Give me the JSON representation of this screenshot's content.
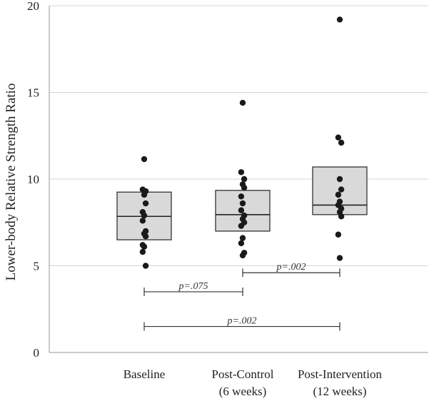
{
  "chart_data": {
    "type": "box",
    "title": "",
    "ylabel": "Lower-body Relative Strength Ratio",
    "xlabel": "",
    "ylim": [
      0,
      20
    ],
    "yticks": [
      0,
      5,
      10,
      15,
      20
    ],
    "grid": true,
    "categories": [
      {
        "label_line1": "Baseline",
        "label_line2": ""
      },
      {
        "label_line1": "Post-Control",
        "label_line2": "(6 weeks)"
      },
      {
        "label_line1": "Post-Intervention",
        "label_line2": "(12 weeks)"
      }
    ],
    "boxes": [
      {
        "q1": 6.5,
        "median": 7.85,
        "q3": 9.25
      },
      {
        "q1": 7.0,
        "median": 7.95,
        "q3": 9.35
      },
      {
        "q1": 7.95,
        "median": 8.5,
        "q3": 10.7
      }
    ],
    "points": [
      [
        11.15,
        9.4,
        9.3,
        9.1,
        8.6,
        8.1,
        7.9,
        7.6,
        7.0,
        6.85,
        6.7,
        6.2,
        6.1,
        5.8,
        5.0
      ],
      [
        14.4,
        10.4,
        10.0,
        9.7,
        9.5,
        9.0,
        8.6,
        8.2,
        7.9,
        7.7,
        7.5,
        7.3,
        6.6,
        6.3,
        5.75,
        5.6
      ],
      [
        19.2,
        12.4,
        12.1,
        10.0,
        9.4,
        9.1,
        8.7,
        8.5,
        8.3,
        8.1,
        7.85,
        6.8,
        5.45
      ]
    ],
    "comparisons": [
      {
        "from": 0,
        "to": 1,
        "y": 3.5,
        "label": "p=.075"
      },
      {
        "from": 1,
        "to": 2,
        "y": 4.6,
        "label": "p=.002"
      },
      {
        "from": 0,
        "to": 2,
        "y": 1.5,
        "label": "p=.002"
      }
    ],
    "colors": {
      "box_fill": "#d9d9d9",
      "box_stroke": "#333333",
      "point": "#1a1a1a",
      "grid": "#d4d4d4"
    }
  }
}
